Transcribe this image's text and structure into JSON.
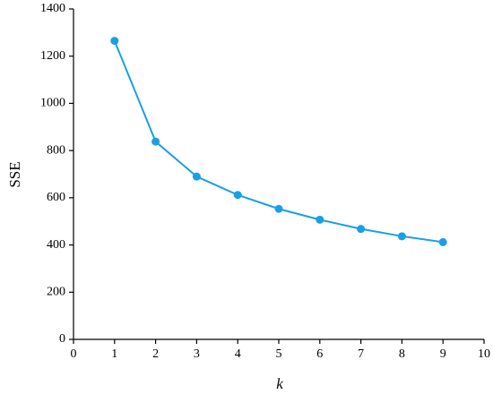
{
  "chart_data": {
    "type": "line",
    "x_label": "k",
    "y_label": "SSE",
    "series": [
      {
        "name": "SSE",
        "color": "#1a9fe6",
        "x": [
          1,
          2,
          3,
          4,
          5,
          6,
          7,
          8,
          9
        ],
        "values": [
          1265,
          838,
          690,
          612,
          553,
          507,
          468,
          437,
          412
        ]
      }
    ],
    "xlim": [
      0,
      10
    ],
    "xticks": [
      0,
      1,
      2,
      3,
      4,
      5,
      6,
      7,
      8,
      9,
      10
    ],
    "ylim": [
      0,
      1400
    ],
    "yticks": [
      0,
      200,
      400,
      600,
      800,
      1000,
      1200,
      1400
    ],
    "grid": false
  }
}
